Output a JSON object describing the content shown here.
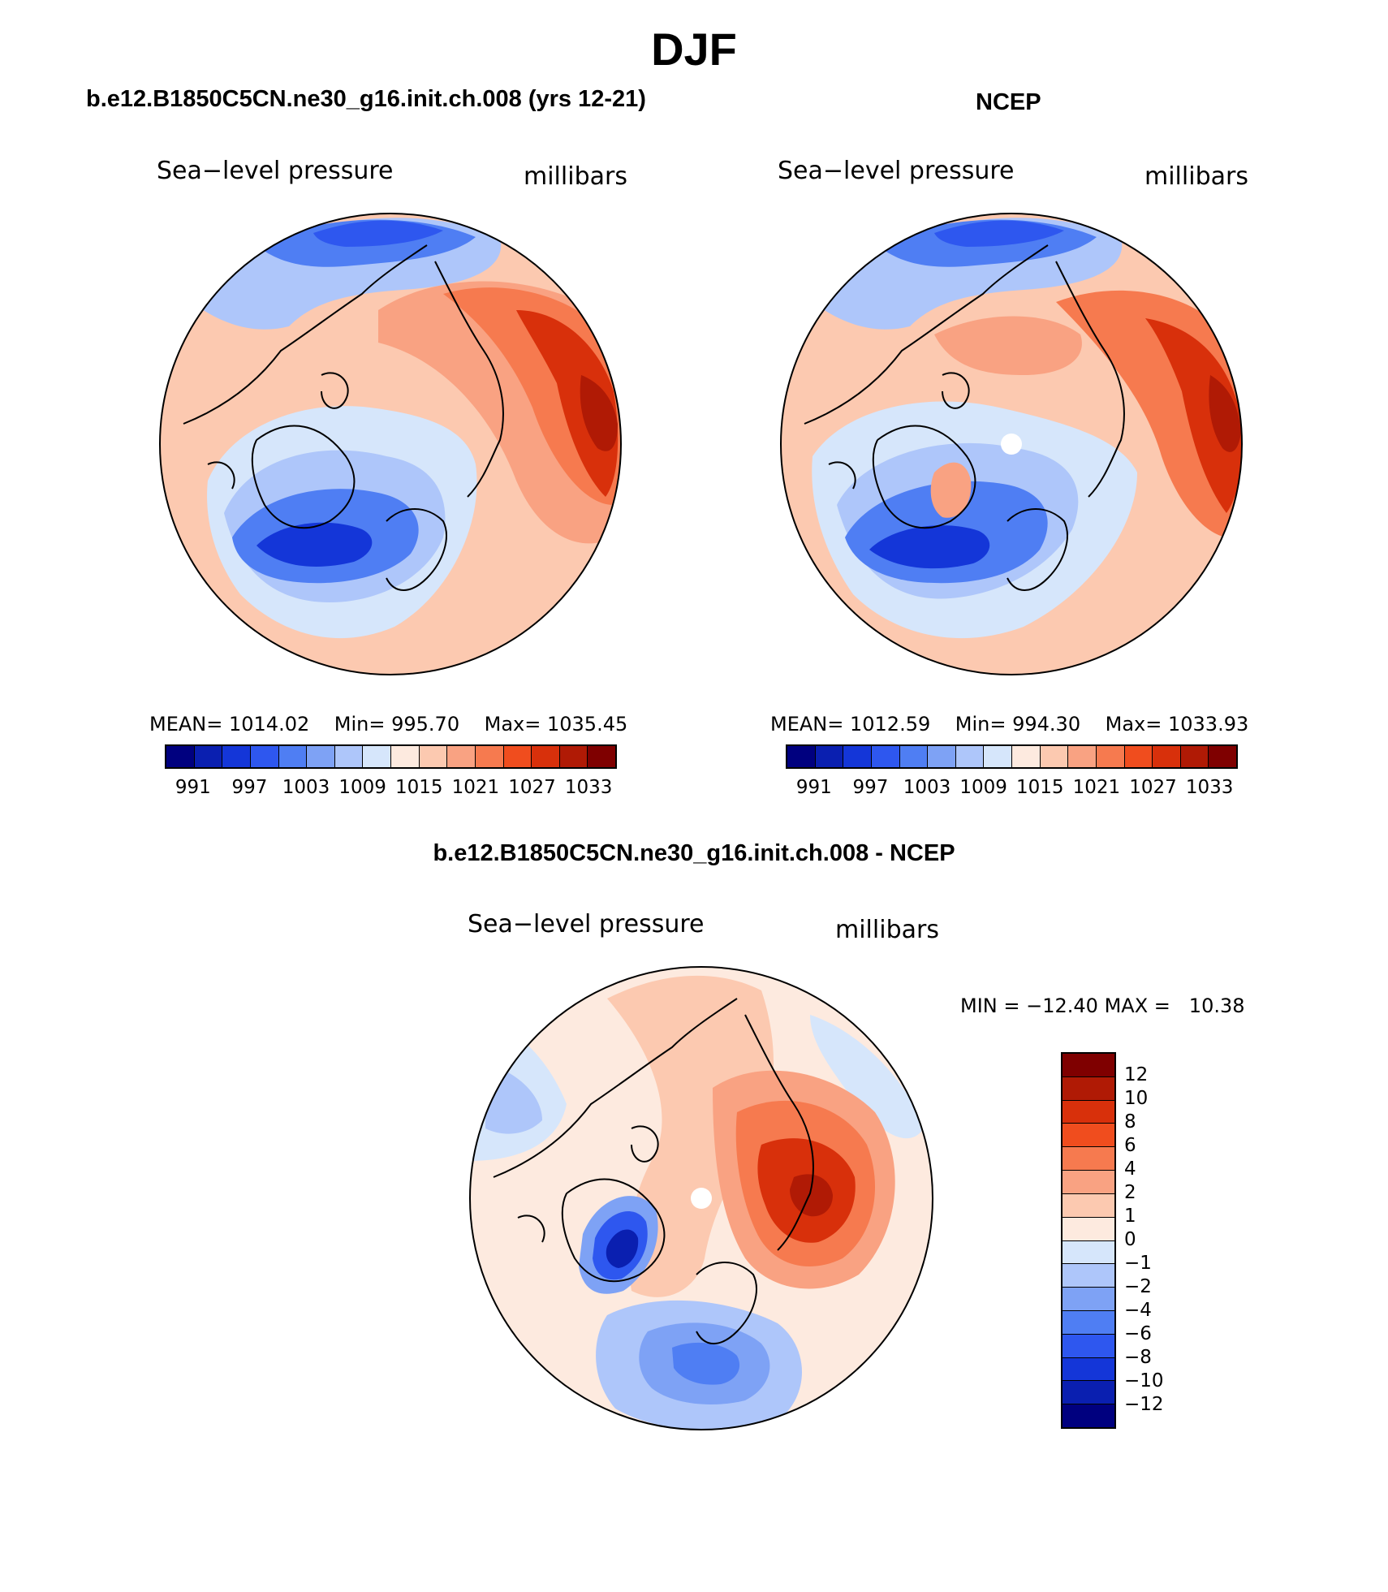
{
  "figure": {
    "title": "DJF"
  },
  "panels": [
    {
      "title": "b.e12.B1850C5CN.ne30_g16.init.ch.008 (yrs 12-21)",
      "variable": "Sea−level pressure",
      "units": "millibars",
      "mean_label": "MEAN=",
      "mean_value": "1014.02",
      "min_label": "Min=",
      "min_value": "995.70",
      "max_label": "Max=",
      "max_value": "1035.45"
    },
    {
      "title": "NCEP",
      "variable": "Sea−level pressure",
      "units": "millibars",
      "mean_label": "MEAN=",
      "mean_value": "1012.59",
      "min_label": "Min=",
      "min_value": "994.30",
      "max_label": "Max=",
      "max_value": "1033.93"
    }
  ],
  "abs_colorbar": {
    "ticks": [
      "991",
      "997",
      "1003",
      "1009",
      "1015",
      "1021",
      "1027",
      "1033"
    ],
    "colors": [
      "#00007f",
      "#0a1fb0",
      "#1436d8",
      "#2e57ef",
      "#4f7ef3",
      "#7ea2f5",
      "#aec6fa",
      "#d6e6fb",
      "#fdeadf",
      "#fcc9b0",
      "#f9a282",
      "#f67a4f",
      "#f04d1e",
      "#d8300b",
      "#b01a05",
      "#7f0000"
    ]
  },
  "diff_panel": {
    "title": "b.e12.B1850C5CN.ne30_g16.init.ch.008 - NCEP",
    "variable": "Sea−level pressure",
    "units": "millibars",
    "min_label": "MIN =",
    "min_value": "−12.40",
    "max_label": "MAX =",
    "max_value": "10.38"
  },
  "diff_colorbar": {
    "ticks": [
      "12",
      "10",
      "8",
      "6",
      "4",
      "2",
      "1",
      "0",
      "−1",
      "−2",
      "−4",
      "−6",
      "−8",
      "−10",
      "−12"
    ],
    "colors": [
      "#7f0000",
      "#b01a05",
      "#d8300b",
      "#f04d1e",
      "#f67a4f",
      "#f9a282",
      "#fcc9b0",
      "#fdeadf",
      "#d6e6fb",
      "#aec6fa",
      "#7ea2f5",
      "#4f7ef3",
      "#2e57ef",
      "#1436d8",
      "#0a1fb0",
      "#00007f"
    ]
  },
  "map_colors": {
    "dark_red": "#7f0000",
    "red": "#d8300b",
    "orange": "#f67a4f",
    "salmon": "#f9a282",
    "peach": "#fcc9b0",
    "cream": "#fdeadf",
    "pale_blue": "#d6e6fb",
    "light_blue": "#aec6fa",
    "mid_blue": "#7ea2f5",
    "blue": "#4f7ef3",
    "strong_blue": "#2e57ef",
    "deep_blue": "#1436d8",
    "navy": "#0a1fb0"
  }
}
